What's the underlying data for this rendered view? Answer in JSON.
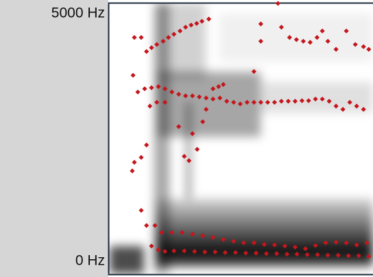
{
  "chart_data": {
    "type": "scatter",
    "ylim": [
      0,
      5000
    ],
    "yticks": [
      {
        "value": 5000,
        "label": "5000 Hz"
      },
      {
        "value": 0,
        "label": "0 Hz"
      }
    ],
    "xlim": [
      0,
      100
    ],
    "series": [
      {
        "color": "#c4161c",
        "x": [
          9.6,
          12.2,
          14.2,
          16.1,
          18.1,
          20.5,
          22.5,
          24.6,
          26.9,
          29.0,
          31.1,
          33.2,
          35.2,
          37.8,
          57.5,
          57.5,
          64.0,
          65.3,
          68.4,
          71.0,
          73.6,
          76.2,
          78.8,
          80.8,
          82.9,
          86.0,
          89.9,
          93.3,
          96.4,
          98.4,
          10.9,
          13.5,
          16.1,
          18.7,
          21.2,
          23.8,
          26.4,
          29.0,
          31.6,
          34.2,
          36.8,
          39.4,
          42.0,
          44.6,
          47.2,
          49.7,
          52.3,
          54.9,
          57.5,
          60.1,
          62.7,
          65.3,
          67.9,
          70.5,
          73.1,
          75.6,
          78.2,
          80.8,
          83.4,
          86.0,
          88.6,
          91.2,
          93.8,
          96.4,
          9.1,
          15.5,
          18.1,
          21.2,
          26.4,
          35.5,
          36.8,
          39.4,
          41.5,
          43.3,
          54.9,
          31.6,
          33.4,
          28.5,
          30.3,
          14.2,
          12.2,
          9.6,
          8.8,
          18.7,
          21.2,
          24.6,
          28.5,
          32.4,
          36.3,
          40.2,
          44.0,
          47.9,
          51.8,
          55.7,
          59.6,
          63.5,
          67.4,
          71.2,
          75.1,
          79.0,
          82.9,
          86.8,
          90.7,
          94.6,
          98.4,
          17.4,
          19.9,
          23.8,
          27.7,
          31.6,
          35.5,
          39.4,
          43.3,
          47.2,
          51.0,
          54.9,
          58.8,
          62.7,
          66.6,
          70.5,
          74.4,
          78.2,
          82.1,
          86.0,
          89.9,
          93.8,
          97.7,
          12.2,
          14.2,
          16.1
        ],
        "values": [
          4370,
          4370,
          4110,
          4180,
          4240,
          4300,
          4370,
          4430,
          4490,
          4560,
          4600,
          4630,
          4670,
          4710,
          4620,
          4300,
          5000,
          4560,
          4370,
          4330,
          4300,
          4280,
          4370,
          4490,
          4300,
          4150,
          4490,
          4240,
          4200,
          4150,
          3360,
          3420,
          3440,
          3460,
          3420,
          3360,
          3320,
          3290,
          3290,
          3270,
          3250,
          3230,
          3250,
          3190,
          3170,
          3140,
          3170,
          3170,
          3170,
          3170,
          3170,
          3190,
          3190,
          3190,
          3200,
          3200,
          3230,
          3230,
          3190,
          3100,
          3040,
          3170,
          3100,
          3040,
          3670,
          3100,
          3170,
          3170,
          2720,
          2810,
          3040,
          3420,
          3460,
          3500,
          3740,
          2590,
          2300,
          2170,
          2090,
          2380,
          2150,
          2060,
          1900,
          440,
          410,
          420,
          420,
          410,
          400,
          400,
          390,
          390,
          380,
          380,
          370,
          370,
          360,
          360,
          350,
          350,
          340,
          340,
          330,
          330,
          320,
          890,
          760,
          760,
          760,
          730,
          700,
          670,
          630,
          600,
          570,
          570,
          540,
          530,
          510,
          490,
          460,
          520,
          570,
          580,
          570,
          530,
          570,
          1170,
          890,
          510
        ]
      }
    ]
  }
}
